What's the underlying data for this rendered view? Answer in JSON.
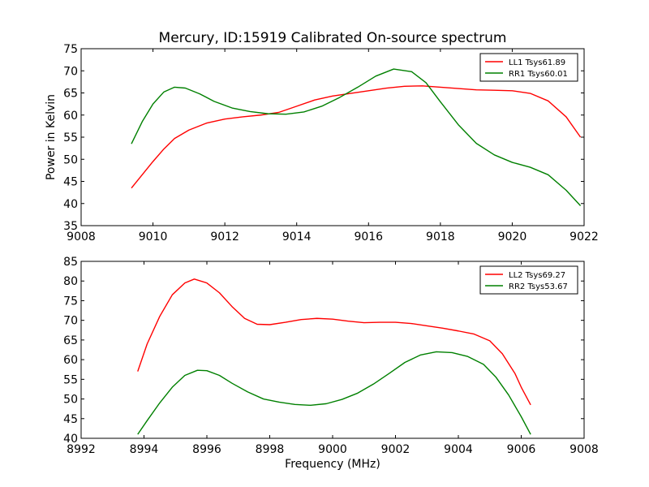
{
  "figure_title": "Mercury, ID:15919 Calibrated On-source spectrum",
  "chart_data": [
    {
      "type": "line",
      "title": "Mercury, ID:15919 Calibrated On-source spectrum",
      "xlabel": "",
      "ylabel": "Power in Kelvin",
      "xlim": [
        9008,
        9022
      ],
      "ylim": [
        35,
        75
      ],
      "xticks": [
        9008,
        9010,
        9012,
        9014,
        9016,
        9018,
        9020,
        9022
      ],
      "yticks": [
        35,
        40,
        45,
        50,
        55,
        60,
        65,
        70,
        75
      ],
      "grid": false,
      "legend_position": "top-right",
      "series": [
        {
          "name": "LL1 Tsys61.89",
          "color": "#ff0000",
          "x": [
            9009.4,
            9009.7,
            9010.0,
            9010.3,
            9010.6,
            9011.0,
            9011.5,
            9012.0,
            9012.5,
            9013.0,
            9013.5,
            9014.0,
            9014.5,
            9015.0,
            9015.5,
            9016.0,
            9016.5,
            9017.0,
            9017.5,
            9018.0,
            9018.5,
            9019.0,
            9019.5,
            9020.0,
            9020.5,
            9021.0,
            9021.5,
            9021.9
          ],
          "y": [
            43.5,
            46.5,
            49.5,
            52.3,
            54.7,
            56.6,
            58.2,
            59.1,
            59.6,
            60.0,
            60.6,
            62.0,
            63.4,
            64.3,
            64.9,
            65.5,
            66.1,
            66.5,
            66.6,
            66.3,
            66.0,
            65.7,
            65.6,
            65.5,
            64.9,
            63.2,
            59.6,
            55.0
          ]
        },
        {
          "name": "RR1 Tsys60.01",
          "color": "#008000",
          "x": [
            9009.4,
            9009.7,
            9010.0,
            9010.3,
            9010.6,
            9010.9,
            9011.3,
            9011.7,
            9012.2,
            9012.7,
            9013.2,
            9013.7,
            9014.2,
            9014.7,
            9015.2,
            9015.7,
            9016.2,
            9016.7,
            9017.2,
            9017.6,
            9018.0,
            9018.5,
            9019.0,
            9019.5,
            9020.0,
            9020.5,
            9021.0,
            9021.5,
            9021.9
          ],
          "y": [
            53.5,
            58.5,
            62.5,
            65.2,
            66.3,
            66.1,
            64.8,
            63.1,
            61.6,
            60.8,
            60.3,
            60.2,
            60.7,
            62.0,
            64.0,
            66.3,
            68.8,
            70.4,
            69.8,
            67.3,
            63.0,
            57.8,
            53.6,
            51.0,
            49.3,
            48.2,
            46.5,
            43.0,
            39.5
          ]
        }
      ]
    },
    {
      "type": "line",
      "title": "",
      "xlabel": "Frequency (MHz)",
      "ylabel": "",
      "xlim": [
        8992,
        9008
      ],
      "ylim": [
        40,
        85
      ],
      "xticks": [
        8992,
        8994,
        8996,
        8998,
        9000,
        9002,
        9004,
        9006,
        9008
      ],
      "yticks": [
        40,
        45,
        50,
        55,
        60,
        65,
        70,
        75,
        80,
        85
      ],
      "grid": false,
      "legend_position": "top-right",
      "series": [
        {
          "name": "LL2 Tsys69.27",
          "color": "#ff0000",
          "x": [
            8993.8,
            8994.1,
            8994.5,
            8994.9,
            8995.3,
            8995.6,
            8996.0,
            8996.4,
            8996.8,
            8997.2,
            8997.6,
            8998.0,
            8998.5,
            8999.0,
            8999.5,
            9000.0,
            9000.5,
            9001.0,
            9001.5,
            9002.0,
            9002.5,
            9003.0,
            9003.5,
            9004.0,
            9004.5,
            9005.0,
            9005.4,
            9005.8,
            9006.0,
            9006.3
          ],
          "y": [
            57.0,
            64.0,
            71.0,
            76.5,
            79.5,
            80.5,
            79.5,
            77.0,
            73.5,
            70.5,
            69.0,
            68.9,
            69.5,
            70.2,
            70.5,
            70.3,
            69.8,
            69.4,
            69.5,
            69.5,
            69.2,
            68.6,
            68.0,
            67.3,
            66.5,
            64.8,
            61.5,
            56.5,
            53.0,
            48.5
          ]
        },
        {
          "name": "RR2 Tsys53.67",
          "color": "#008000",
          "x": [
            8993.8,
            8994.1,
            8994.5,
            8994.9,
            8995.3,
            8995.7,
            8996.0,
            8996.4,
            8996.8,
            8997.3,
            8997.8,
            8998.3,
            8998.8,
            8999.3,
            8999.8,
            9000.3,
            9000.8,
            9001.3,
            9001.8,
            9002.3,
            9002.8,
            9003.3,
            9003.8,
            9004.3,
            9004.8,
            9005.2,
            9005.6,
            9006.0,
            9006.3
          ],
          "y": [
            41.0,
            44.5,
            49.0,
            53.0,
            56.0,
            57.3,
            57.2,
            56.0,
            54.0,
            51.8,
            50.0,
            49.2,
            48.6,
            48.4,
            48.8,
            49.9,
            51.5,
            53.8,
            56.5,
            59.3,
            61.2,
            62.0,
            61.8,
            60.8,
            58.8,
            55.5,
            51.0,
            45.5,
            41.0
          ]
        }
      ]
    }
  ]
}
